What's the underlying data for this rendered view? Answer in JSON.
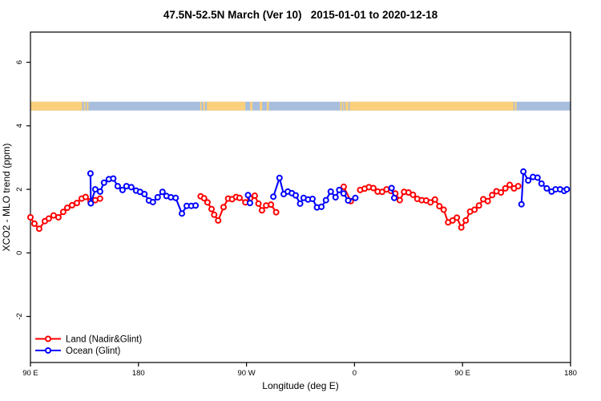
{
  "title": "47.5N-52.5N March (Ver 10)   2015-01-01 to 2020-12-18",
  "chart_data": {
    "type": "line",
    "title": "47.5N-52.5N March (Ver 10)   2015-01-01 to 2020-12-18",
    "xlabel": "Longitude (deg E)",
    "ylabel": "XCO2 - MLO trend (ppm)",
    "x_axis_note": "axis spans 450 longitude degrees starting at 90E (90E-180-90W-0-90E-180)",
    "xlim_deg": [
      0,
      450
    ],
    "ylim": [
      -3.45,
      6.95
    ],
    "grid": false,
    "x_ticks": [
      {
        "deg": 0,
        "label": "90 E"
      },
      {
        "deg": 90,
        "label": "180"
      },
      {
        "deg": 180,
        "label": "90 W"
      },
      {
        "deg": 270,
        "label": "0"
      },
      {
        "deg": 360,
        "label": "90 E"
      },
      {
        "deg": 450,
        "label": "180"
      }
    ],
    "y_ticks": [
      {
        "value": -2,
        "label": "-2"
      },
      {
        "value": 0,
        "label": "0"
      },
      {
        "value": 2,
        "label": "2"
      },
      {
        "value": 4,
        "label": "4"
      },
      {
        "value": 6,
        "label": "6"
      }
    ],
    "map_strip": {
      "description": "land/ocean mask band for latitude 47.5N-52.5N",
      "center_value": 4.62,
      "ocean_color": "#a8bedc",
      "land_color": "#fbd07c",
      "land_segments_deg": [
        [
          0,
          43
        ],
        [
          44.5,
          45.7
        ],
        [
          47,
          48.3
        ],
        [
          141.5,
          142.6
        ],
        [
          144,
          145.5
        ],
        [
          147,
          179
        ],
        [
          183,
          185
        ],
        [
          191,
          193
        ],
        [
          197,
          198.5
        ],
        [
          258,
          259.5
        ],
        [
          260.5,
          261.5
        ],
        [
          262.5,
          265
        ],
        [
          266,
          402.5
        ],
        [
          403.5,
          405
        ]
      ]
    },
    "series": [
      {
        "name": "Land (Nadir&Glint)",
        "color": "#ff0000",
        "segments": [
          [
            [
              0,
              1.12
            ],
            [
              3.3,
              0.92
            ],
            [
              7.3,
              0.76
            ],
            [
              12,
              1.0
            ],
            [
              15.3,
              1.08
            ],
            [
              19.3,
              1.18
            ],
            [
              23.3,
              1.12
            ],
            [
              27.3,
              1.29
            ],
            [
              30.7,
              1.42
            ],
            [
              34.7,
              1.5
            ],
            [
              38.7,
              1.57
            ],
            [
              42.7,
              1.71
            ],
            [
              46,
              1.76
            ],
            [
              50,
              1.63
            ],
            [
              54,
              1.66
            ],
            [
              58,
              1.71
            ]
          ],
          [
            [
              141.8,
              1.78
            ],
            [
              144.7,
              1.72
            ],
            [
              147.5,
              1.59
            ],
            [
              150.9,
              1.38
            ],
            [
              153.1,
              1.2
            ],
            [
              156.4,
              1.02
            ],
            [
              160.9,
              1.44
            ],
            [
              164.7,
              1.71
            ],
            [
              168,
              1.69
            ],
            [
              171.3,
              1.76
            ],
            [
              174.2,
              1.73
            ],
            [
              179.1,
              1.59
            ],
            [
              183.1,
              1.72
            ],
            [
              186.9,
              1.8
            ],
            [
              190,
              1.55
            ],
            [
              192.9,
              1.34
            ],
            [
              196.4,
              1.49
            ],
            [
              200.4,
              1.52
            ],
            [
              204.7,
              1.28
            ]
          ],
          [
            [
              261,
              2.08
            ],
            [
              266.9,
              1.63
            ]
          ],
          [
            [
              274.7,
              1.98
            ],
            [
              278.4,
              2.02
            ],
            [
              282,
              2.07
            ],
            [
              285.7,
              2.04
            ],
            [
              289.3,
              1.93
            ],
            [
              293,
              1.92
            ],
            [
              296.7,
              2.0
            ],
            [
              300.3,
              1.95
            ],
            [
              304,
              1.87
            ],
            [
              307.7,
              1.66
            ],
            [
              311.3,
              1.92
            ],
            [
              315,
              1.9
            ],
            [
              318.7,
              1.83
            ],
            [
              322.3,
              1.7
            ],
            [
              326,
              1.66
            ],
            [
              329.7,
              1.65
            ],
            [
              333.3,
              1.59
            ],
            [
              337,
              1.68
            ],
            [
              340.7,
              1.47
            ],
            [
              344.3,
              1.36
            ],
            [
              348,
              0.96
            ],
            [
              351.7,
              1.02
            ],
            [
              355.3,
              1.11
            ],
            [
              359,
              0.8
            ],
            [
              362.7,
              1.02
            ],
            [
              366.3,
              1.3
            ],
            [
              370,
              1.36
            ],
            [
              373.7,
              1.49
            ],
            [
              377.3,
              1.69
            ],
            [
              381,
              1.63
            ],
            [
              384.7,
              1.82
            ],
            [
              388.3,
              1.94
            ],
            [
              392,
              1.9
            ],
            [
              395.7,
              2.03
            ],
            [
              399.3,
              2.14
            ],
            [
              402.9,
              2.03
            ],
            [
              406.4,
              2.1
            ]
          ]
        ]
      },
      {
        "name": "Ocean (Glint)",
        "color": "#0000ff",
        "segments": [
          [
            [
              50,
              2.5
            ],
            [
              50.3,
              1.56
            ],
            [
              54,
              2.0
            ],
            [
              58,
              1.93
            ],
            [
              61.3,
              2.21
            ],
            [
              65.3,
              2.32
            ],
            [
              69,
              2.34
            ],
            [
              72.7,
              2.1
            ],
            [
              76.7,
              1.98
            ],
            [
              80,
              2.1
            ],
            [
              84,
              2.07
            ],
            [
              88,
              1.96
            ],
            [
              91.3,
              1.92
            ],
            [
              95,
              1.85
            ],
            [
              98.7,
              1.65
            ],
            [
              102,
              1.6
            ],
            [
              106,
              1.75
            ],
            [
              110,
              1.92
            ],
            [
              113.3,
              1.79
            ],
            [
              117,
              1.75
            ],
            [
              121,
              1.73
            ],
            [
              126.2,
              1.24
            ],
            [
              130.2,
              1.48
            ],
            [
              134,
              1.48
            ],
            [
              137.6,
              1.49
            ]
          ],
          [
            [
              181.3,
              1.82
            ],
            [
              182.9,
              1.57
            ]
          ],
          [
            [
              202.4,
              1.77
            ],
            [
              207.5,
              2.36
            ],
            [
              211,
              1.85
            ],
            [
              214.4,
              1.93
            ],
            [
              217.8,
              1.88
            ],
            [
              221,
              1.81
            ],
            [
              224.7,
              1.55
            ],
            [
              227.6,
              1.73
            ],
            [
              231.3,
              1.68
            ],
            [
              235,
              1.7
            ],
            [
              238.7,
              1.43
            ],
            [
              242.4,
              1.45
            ],
            [
              246.2,
              1.66
            ],
            [
              250.2,
              1.93
            ],
            [
              254.2,
              1.75
            ],
            [
              257.3,
              1.98
            ],
            [
              260.9,
              1.87
            ],
            [
              264.7,
              1.65
            ],
            [
              270.7,
              1.73
            ]
          ],
          [
            [
              300.9,
              2.04
            ],
            [
              303.1,
              1.73
            ]
          ],
          [
            [
              409.1,
              1.53
            ],
            [
              410.7,
              2.56
            ],
            [
              414.7,
              2.28
            ],
            [
              418.7,
              2.39
            ],
            [
              422.5,
              2.37
            ],
            [
              425.8,
              2.18
            ],
            [
              430.2,
              2.03
            ],
            [
              434.2,
              1.93
            ],
            [
              437.5,
              2.0
            ],
            [
              441.3,
              2.0
            ],
            [
              444.7,
              1.95
            ],
            [
              446.9,
              2.0
            ]
          ]
        ]
      }
    ],
    "legend": {
      "position": "bottom-left",
      "items": [
        {
          "label": "Land (Nadir&Glint)",
          "color": "#ff0000"
        },
        {
          "label": "Ocean (Glint)",
          "color": "#0000ff"
        }
      ]
    }
  }
}
